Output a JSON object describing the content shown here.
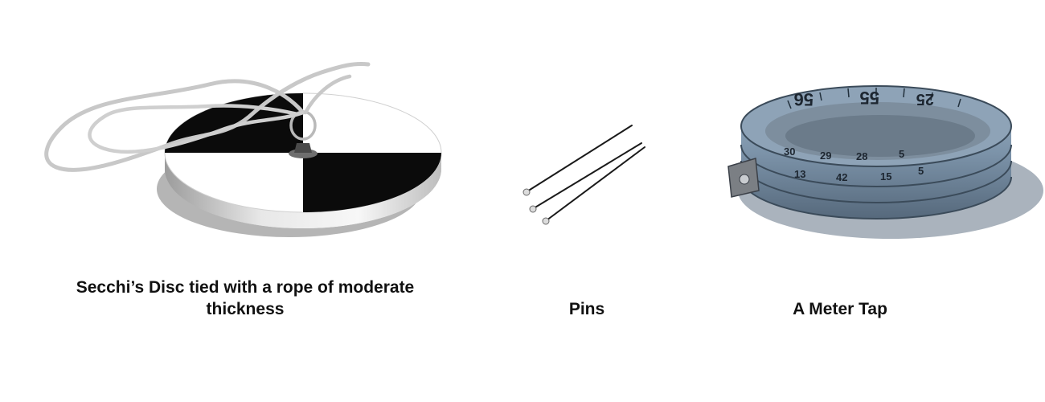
{
  "items": [
    {
      "icon": "secchi-disc-icon",
      "caption": "Secchi’s Disc tied with a rope of moderate thickness"
    },
    {
      "icon": "pins-icon",
      "caption": "Pins"
    },
    {
      "icon": "measuring-tape-icon",
      "caption": "A Meter Tap",
      "tape_markings": [
        "56",
        "55",
        "25",
        "30",
        "29",
        "28",
        "5",
        "13",
        "42",
        "15",
        "5"
      ]
    }
  ],
  "colors": {
    "disc_black": "#0b0b0b",
    "disc_white": "#ffffff",
    "rope": "#c8c8c8",
    "tape_blue": "#7f97ad",
    "shadow": "#aab3bd"
  }
}
